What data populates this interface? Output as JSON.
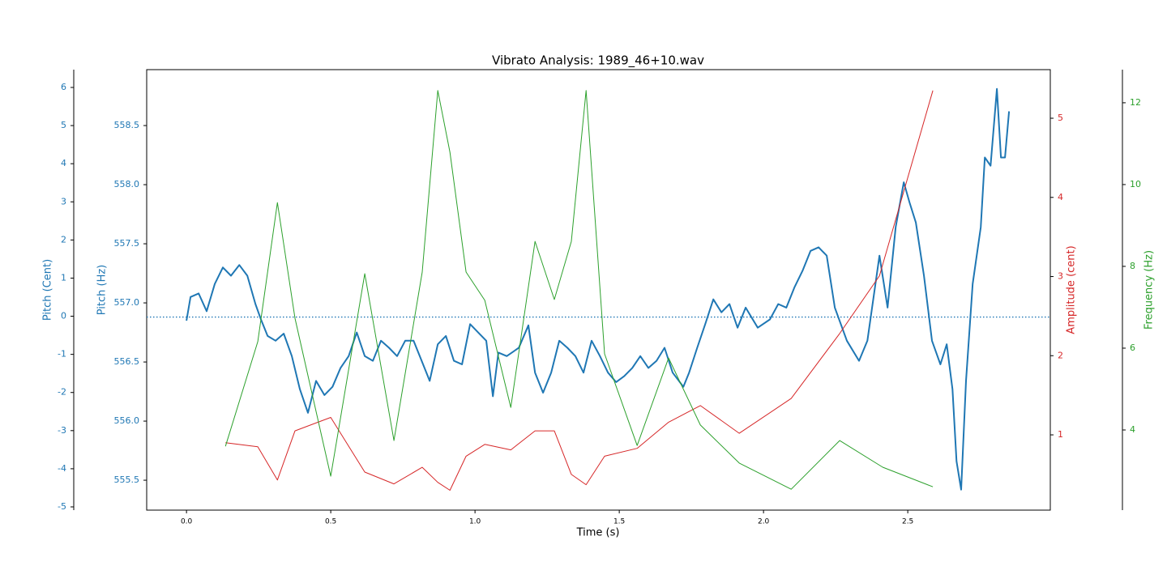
{
  "chart_data": {
    "type": "line",
    "title": "Vibrato Analysis: 1989_46+10.wav",
    "xlabel": "Time (s)",
    "ylabel": "Pitch (Hz)",
    "y_cent_label": "Pitch (Cent)",
    "y2label": "Amplitude (cent)",
    "y3label": "Frequency (Hz)",
    "xlim": [
      -0.138,
      2.994
    ],
    "xticks": [
      {
        "value": 0,
        "label": "0.0"
      },
      0.5,
      {
        "value": 1,
        "label": "1.0"
      },
      1.5,
      {
        "value": 2,
        "label": "2.0"
      },
      2.5
    ],
    "ylim": [
      555.247,
      558.973
    ],
    "yticks": [
      555.5,
      {
        "value": 556,
        "label": "556.0"
      },
      556.5,
      {
        "value": 557,
        "label": "557.0"
      },
      557.5,
      {
        "value": 558,
        "label": "558.0"
      },
      558.5
    ],
    "y_cent_lim": [
      -5.085,
      6.467
    ],
    "y_cent_ticks": [
      -5,
      -4,
      -3,
      -2,
      -1,
      0,
      1,
      2,
      3,
      4,
      5,
      6
    ],
    "y2lim": [
      0.049,
      5.614
    ],
    "y2ticks": [
      1,
      2,
      3,
      4,
      5
    ],
    "y3lim": [
      2.04,
      12.81
    ],
    "y3ticks": [
      4,
      6,
      8,
      10,
      12
    ],
    "reference_line": 556.88,
    "reference_color": "#1f77b4",
    "series": [
      {
        "color": "#1f77b4",
        "axis": "y",
        "width": 2,
        "x": [
          0,
          0.014,
          0.042,
          0.07,
          0.098,
          0.126,
          0.154,
          0.183,
          0.211,
          0.239,
          0.258,
          0.281,
          0.309,
          0.337,
          0.365,
          0.393,
          0.421,
          0.449,
          0.478,
          0.506,
          0.534,
          0.562,
          0.59,
          0.618,
          0.646,
          0.674,
          0.702,
          0.73,
          0.758,
          0.787,
          0.815,
          0.843,
          0.871,
          0.899,
          0.927,
          0.955,
          0.983,
          1.011,
          1.039,
          1.062,
          1.081,
          1.11,
          1.152,
          1.185,
          1.208,
          1.236,
          1.264,
          1.292,
          1.32,
          1.348,
          1.376,
          1.404,
          1.433,
          1.461,
          1.489,
          1.517,
          1.545,
          1.573,
          1.601,
          1.629,
          1.657,
          1.685,
          1.722,
          1.742,
          1.77,
          1.798,
          1.826,
          1.854,
          1.882,
          1.91,
          1.938,
          1.98,
          2.022,
          2.051,
          2.079,
          2.107,
          2.135,
          2.163,
          2.191,
          2.219,
          2.247,
          2.289,
          2.331,
          2.36,
          2.402,
          2.43,
          2.458,
          2.486,
          2.506,
          2.528,
          2.556,
          2.584,
          2.613,
          2.635,
          2.655,
          2.669,
          2.685,
          2.702,
          2.725,
          2.753,
          2.767,
          2.787,
          2.809,
          2.823,
          2.837,
          2.851
        ],
        "values": [
          556.85,
          557.05,
          557.08,
          556.93,
          557.16,
          557.3,
          557.23,
          557.32,
          557.23,
          556.99,
          556.86,
          556.72,
          556.68,
          556.74,
          556.55,
          556.27,
          556.07,
          556.34,
          556.22,
          556.29,
          556.45,
          556.55,
          556.75,
          556.55,
          556.51,
          556.68,
          556.62,
          556.55,
          556.68,
          556.68,
          556.51,
          556.34,
          556.65,
          556.72,
          556.51,
          556.48,
          556.82,
          556.75,
          556.68,
          556.21,
          556.58,
          556.55,
          556.62,
          556.81,
          556.41,
          556.24,
          556.41,
          556.68,
          556.62,
          556.55,
          556.41,
          556.68,
          556.55,
          556.41,
          556.33,
          556.38,
          556.45,
          556.55,
          556.45,
          556.51,
          556.62,
          556.41,
          556.29,
          556.41,
          556.62,
          556.82,
          557.03,
          556.92,
          556.99,
          556.79,
          556.96,
          556.79,
          556.86,
          556.99,
          556.96,
          557.13,
          557.27,
          557.44,
          557.47,
          557.4,
          556.96,
          556.68,
          556.51,
          556.68,
          557.4,
          556.96,
          557.64,
          558.02,
          557.85,
          557.68,
          557.23,
          556.68,
          556.48,
          556.65,
          556.27,
          555.66,
          555.42,
          556.34,
          557.16,
          557.64,
          558.23,
          558.16,
          558.81,
          558.23,
          558.23,
          558.62
        ]
      },
      {
        "color": "#d62728",
        "axis": "y2",
        "width": 1,
        "x": [
          0.135,
          0.247,
          0.315,
          0.376,
          0.5,
          0.618,
          0.719,
          0.817,
          0.871,
          0.913,
          0.969,
          1.034,
          1.124,
          1.208,
          1.275,
          1.334,
          1.385,
          1.449,
          1.562,
          1.671,
          1.781,
          1.916,
          2.096,
          2.264,
          2.402,
          2.587
        ],
        "values": [
          0.9,
          0.85,
          0.43,
          1.05,
          1.22,
          0.53,
          0.38,
          0.59,
          0.4,
          0.3,
          0.73,
          0.88,
          0.81,
          1.05,
          1.05,
          0.5,
          0.37,
          0.73,
          0.83,
          1.16,
          1.37,
          1.02,
          1.46,
          2.28,
          3.01,
          5.35
        ]
      },
      {
        "color": "#2ca02c",
        "axis": "y3",
        "width": 1,
        "x": [
          0.135,
          0.247,
          0.315,
          0.376,
          0.5,
          0.618,
          0.719,
          0.817,
          0.871,
          0.913,
          0.969,
          1.034,
          1.124,
          1.208,
          1.275,
          1.334,
          1.385,
          1.449,
          1.562,
          1.671,
          1.781,
          1.916,
          2.096,
          2.264,
          2.413,
          2.587
        ],
        "values": [
          3.6,
          6.16,
          9.56,
          6.73,
          2.87,
          7.82,
          3.74,
          7.86,
          12.3,
          10.79,
          7.86,
          7.17,
          4.55,
          8.61,
          7.19,
          8.61,
          12.3,
          5.86,
          3.62,
          5.76,
          4.12,
          3.19,
          2.55,
          3.74,
          3.09,
          2.61
        ]
      }
    ]
  }
}
